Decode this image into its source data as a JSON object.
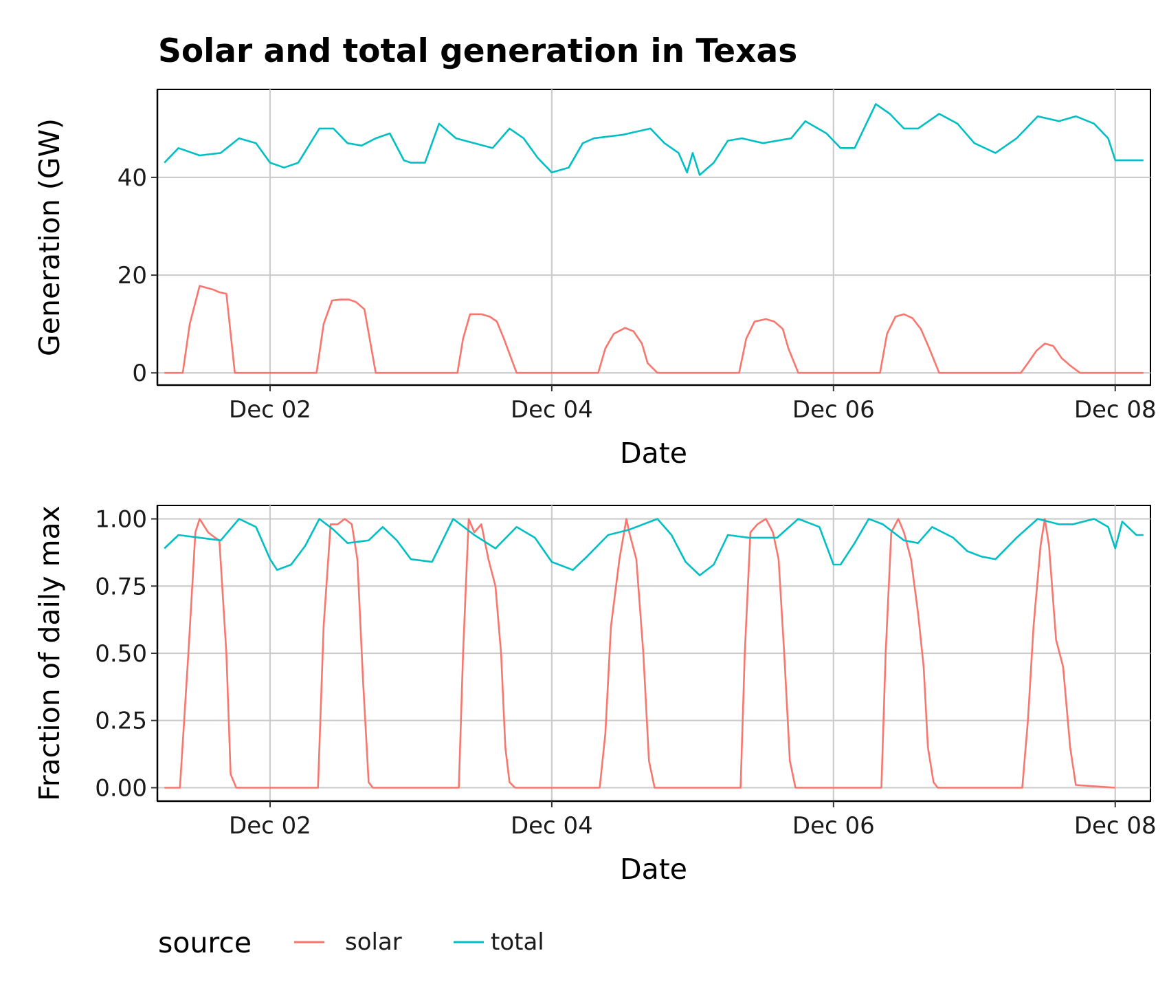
{
  "figure": {
    "title": "Solar and total generation in Texas"
  },
  "legend": {
    "title": "source",
    "items": [
      {
        "label": "solar",
        "color": "#F8766D"
      },
      {
        "label": "total",
        "color": "#00BFC4"
      }
    ],
    "position": "bottom-left"
  },
  "chart_data": [
    {
      "type": "line",
      "title": "Solar and total generation in Texas",
      "xlabel": "Date",
      "ylabel": "Generation (GW)",
      "xlim": [
        1.2,
        8.25
      ],
      "ylim": [
        -2.5,
        58
      ],
      "xticks": [
        2,
        4,
        6,
        8
      ],
      "xtick_labels": [
        "Dec 02",
        "Dec 04",
        "Dec 06",
        "Dec 08"
      ],
      "yticks": [
        0,
        20,
        40
      ],
      "ytick_labels": [
        "0",
        "20",
        "40"
      ],
      "grid": true,
      "series": [
        {
          "name": "solar",
          "color": "#F8766D",
          "x": [
            1.25,
            1.38,
            1.43,
            1.5,
            1.6,
            1.64,
            1.69,
            1.75,
            1.8,
            2.1,
            2.33,
            2.38,
            2.44,
            2.5,
            2.56,
            2.61,
            2.67,
            2.75,
            2.8,
            3.1,
            3.33,
            3.37,
            3.42,
            3.5,
            3.56,
            3.61,
            3.66,
            3.75,
            3.8,
            4.1,
            4.33,
            4.38,
            4.44,
            4.52,
            4.58,
            4.64,
            4.68,
            4.75,
            4.8,
            5.1,
            5.33,
            5.38,
            5.44,
            5.52,
            5.58,
            5.64,
            5.68,
            5.75,
            5.8,
            6.1,
            6.33,
            6.38,
            6.44,
            6.5,
            6.56,
            6.62,
            6.68,
            6.75,
            6.8,
            7.1,
            7.33,
            7.38,
            7.44,
            7.5,
            7.56,
            7.62,
            7.68,
            7.75,
            7.8,
            8.2
          ],
          "y": [
            0,
            0,
            10,
            17.8,
            17,
            16.5,
            16.2,
            0,
            0,
            0,
            0,
            10,
            14.8,
            15,
            15,
            14.5,
            13,
            0,
            0,
            0,
            0,
            7,
            12,
            12,
            11.5,
            10.5,
            7,
            0,
            0,
            0,
            0,
            5,
            8,
            9.2,
            8.5,
            6,
            2,
            0,
            0,
            0,
            0,
            7,
            10.5,
            11,
            10.5,
            9,
            5,
            0,
            0,
            0,
            0,
            8,
            11.5,
            12,
            11.2,
            9,
            5,
            0,
            0,
            0,
            0,
            2,
            4.5,
            6,
            5.5,
            3,
            1.5,
            0,
            0,
            0
          ]
        },
        {
          "name": "total",
          "color": "#00BFC4",
          "x": [
            1.25,
            1.35,
            1.5,
            1.65,
            1.78,
            1.9,
            2.0,
            2.1,
            2.2,
            2.35,
            2.45,
            2.55,
            2.65,
            2.75,
            2.85,
            2.95,
            3.0,
            3.1,
            3.2,
            3.32,
            3.45,
            3.58,
            3.7,
            3.8,
            3.9,
            4.0,
            4.12,
            4.22,
            4.3,
            4.5,
            4.7,
            4.8,
            4.9,
            4.96,
            5.0,
            5.05,
            5.15,
            5.25,
            5.35,
            5.5,
            5.7,
            5.8,
            5.95,
            6.05,
            6.15,
            6.3,
            6.4,
            6.5,
            6.6,
            6.75,
            6.88,
            7.0,
            7.15,
            7.3,
            7.45,
            7.6,
            7.72,
            7.85,
            7.95,
            8.0,
            8.1,
            8.2
          ],
          "y": [
            43,
            46,
            44.5,
            45,
            48,
            47,
            43,
            42,
            43,
            50,
            50,
            47,
            46.5,
            48,
            49,
            43.5,
            43,
            43,
            51,
            48,
            47,
            46,
            50,
            48,
            44,
            41,
            42,
            47,
            48,
            48.7,
            50,
            47,
            45,
            41,
            45,
            40.5,
            43,
            47.5,
            48,
            47,
            48,
            51.5,
            49,
            46,
            46,
            55,
            53,
            50,
            50,
            53,
            51,
            47,
            45,
            48,
            52.5,
            51.5,
            52.5,
            51,
            48,
            43.5,
            43.5,
            43.5
          ]
        }
      ]
    },
    {
      "type": "line",
      "xlabel": "Date",
      "ylabel": "Fraction of daily max",
      "xlim": [
        1.2,
        8.25
      ],
      "ylim": [
        -0.05,
        1.05
      ],
      "xticks": [
        2,
        4,
        6,
        8
      ],
      "xtick_labels": [
        "Dec 02",
        "Dec 04",
        "Dec 06",
        "Dec 08"
      ],
      "yticks": [
        0,
        0.25,
        0.5,
        0.75,
        1
      ],
      "ytick_labels": [
        "0.00",
        "0.25",
        "0.50",
        "0.75",
        "1.00"
      ],
      "grid": true,
      "series": [
        {
          "name": "solar",
          "color": "#F8766D",
          "x": [
            1.25,
            1.36,
            1.42,
            1.47,
            1.5,
            1.56,
            1.61,
            1.64,
            1.69,
            1.72,
            1.76,
            2.15,
            2.34,
            2.38,
            2.43,
            2.48,
            2.53,
            2.58,
            2.62,
            2.66,
            2.7,
            2.73,
            3.15,
            3.34,
            3.37,
            3.41,
            3.45,
            3.5,
            3.55,
            3.6,
            3.64,
            3.67,
            3.7,
            3.74,
            4.15,
            4.34,
            4.38,
            4.42,
            4.48,
            4.53,
            4.55,
            4.6,
            4.65,
            4.69,
            4.73,
            5.15,
            5.34,
            5.37,
            5.41,
            5.46,
            5.52,
            5.57,
            5.61,
            5.65,
            5.69,
            5.73,
            6.15,
            6.34,
            6.37,
            6.41,
            6.46,
            6.5,
            6.55,
            6.6,
            6.64,
            6.67,
            6.71,
            6.74,
            7.15,
            7.34,
            7.38,
            7.42,
            7.47,
            7.5,
            7.53,
            7.58,
            7.63,
            7.68,
            7.72,
            8.0
          ],
          "y": [
            0,
            0,
            0.5,
            0.95,
            1.0,
            0.95,
            0.93,
            0.92,
            0.5,
            0.05,
            0,
            0,
            0,
            0.6,
            0.98,
            0.98,
            1.0,
            0.98,
            0.85,
            0.4,
            0.02,
            0,
            0,
            0,
            0.5,
            1.0,
            0.95,
            0.98,
            0.85,
            0.75,
            0.5,
            0.15,
            0.02,
            0,
            0,
            0,
            0.2,
            0.6,
            0.85,
            1.0,
            0.95,
            0.85,
            0.5,
            0.1,
            0,
            0,
            0,
            0.5,
            0.95,
            0.98,
            1.0,
            0.95,
            0.85,
            0.5,
            0.1,
            0,
            0,
            0,
            0.5,
            0.95,
            1.0,
            0.95,
            0.85,
            0.65,
            0.45,
            0.15,
            0.02,
            0,
            0,
            0,
            0.25,
            0.6,
            0.9,
            1.0,
            0.9,
            0.55,
            0.45,
            0.15,
            0.01,
            0
          ]
        },
        {
          "name": "total",
          "color": "#00BFC4",
          "x": [
            1.25,
            1.35,
            1.5,
            1.65,
            1.78,
            1.9,
            2.0,
            2.05,
            2.15,
            2.25,
            2.35,
            2.45,
            2.55,
            2.7,
            2.8,
            2.9,
            3.0,
            3.15,
            3.3,
            3.45,
            3.6,
            3.75,
            3.88,
            4.0,
            4.15,
            4.25,
            4.4,
            4.55,
            4.75,
            4.85,
            4.95,
            5.05,
            5.15,
            5.25,
            5.4,
            5.6,
            5.75,
            5.9,
            6.0,
            6.05,
            6.15,
            6.25,
            6.35,
            6.5,
            6.6,
            6.7,
            6.85,
            6.95,
            7.05,
            7.15,
            7.3,
            7.45,
            7.6,
            7.7,
            7.85,
            7.95,
            8.0,
            8.05,
            8.15,
            8.2
          ],
          "y": [
            0.89,
            0.94,
            0.93,
            0.92,
            1.0,
            0.97,
            0.85,
            0.81,
            0.83,
            0.9,
            1.0,
            0.96,
            0.91,
            0.92,
            0.97,
            0.92,
            0.85,
            0.84,
            1.0,
            0.94,
            0.89,
            0.97,
            0.93,
            0.84,
            0.81,
            0.86,
            0.94,
            0.96,
            1.0,
            0.94,
            0.84,
            0.79,
            0.83,
            0.94,
            0.93,
            0.93,
            1.0,
            0.97,
            0.83,
            0.83,
            0.91,
            1.0,
            0.98,
            0.92,
            0.91,
            0.97,
            0.93,
            0.88,
            0.86,
            0.85,
            0.93,
            1.0,
            0.98,
            0.98,
            1.0,
            0.97,
            0.89,
            0.99,
            0.94,
            0.94
          ]
        }
      ]
    }
  ]
}
